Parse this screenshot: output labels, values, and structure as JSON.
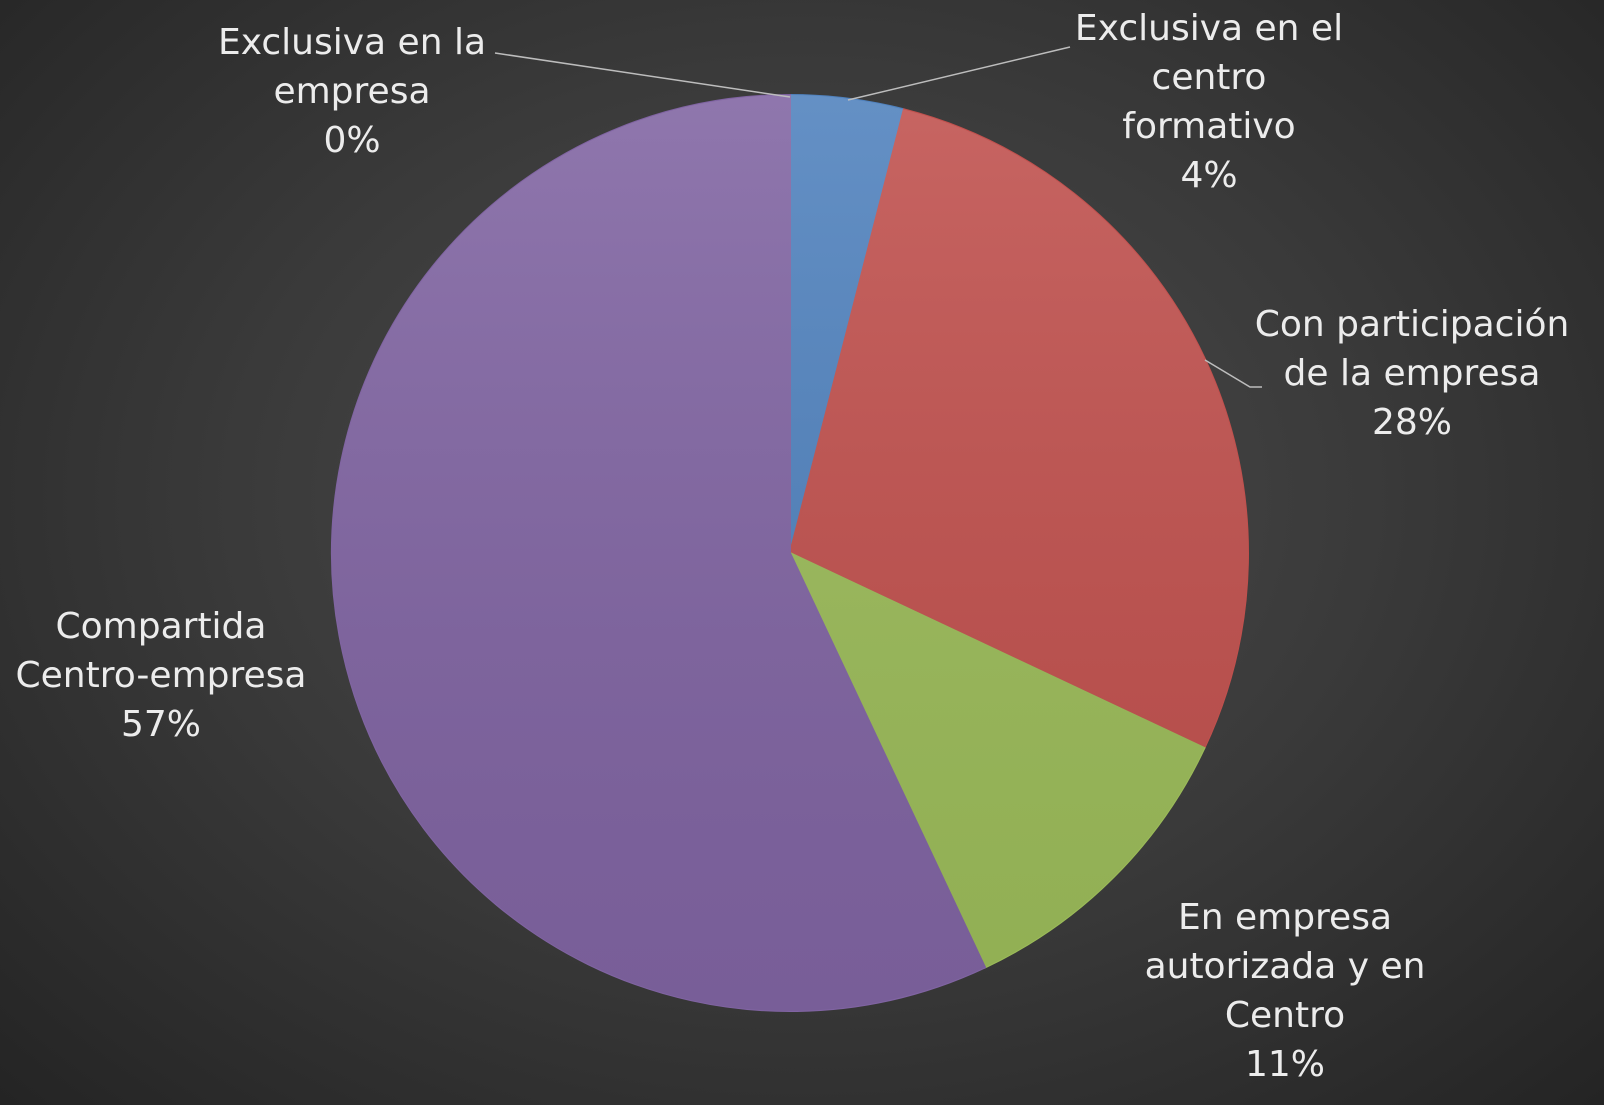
{
  "chart_data": {
    "type": "pie",
    "categories": [
      "Exclusiva en la empresa",
      "Exclusiva en el centro formativo",
      "Con participación de la empresa",
      "En empresa autorizada y en Centro",
      "Compartida Centro-empresa"
    ],
    "values": [
      0,
      4,
      28,
      11,
      57
    ],
    "value_labels": [
      "0%",
      "4%",
      "28%",
      "11%",
      "57%"
    ],
    "colors": [
      "#9db8e0",
      "#4f81bd",
      "#c0504d",
      "#9bbb59",
      "#8064a2"
    ]
  }
}
